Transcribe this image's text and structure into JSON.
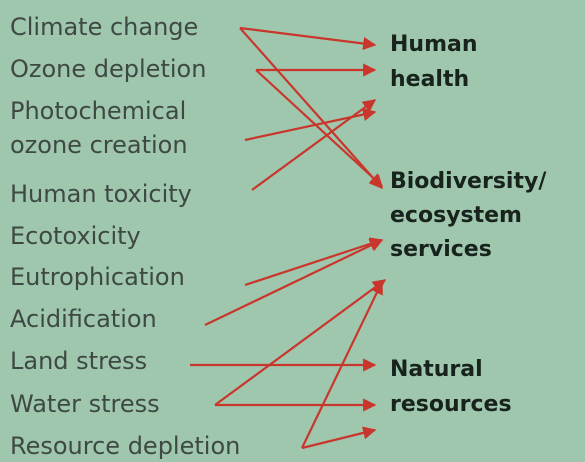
{
  "impacts": [
    {
      "lines": [
        "Climate change"
      ]
    },
    {
      "lines": [
        "Ozone depletion"
      ]
    },
    {
      "lines": [
        "Photochemical",
        "ozone creation"
      ]
    },
    {
      "lines": [
        "Human toxicity"
      ]
    },
    {
      "lines": [
        "Ecotoxicity"
      ]
    },
    {
      "lines": [
        "Eutrophication"
      ]
    },
    {
      "lines": [
        "Acidification"
      ]
    },
    {
      "lines": [
        "Land stress"
      ]
    },
    {
      "lines": [
        "Water stress"
      ]
    },
    {
      "lines": [
        "Resource depletion"
      ]
    }
  ],
  "endpoints": [
    {
      "lines": [
        "Human",
        "health"
      ]
    },
    {
      "lines": [
        "Biodiversity/",
        "ecosystem",
        "services"
      ]
    },
    {
      "lines": [
        "Natural",
        "resources"
      ]
    }
  ]
}
